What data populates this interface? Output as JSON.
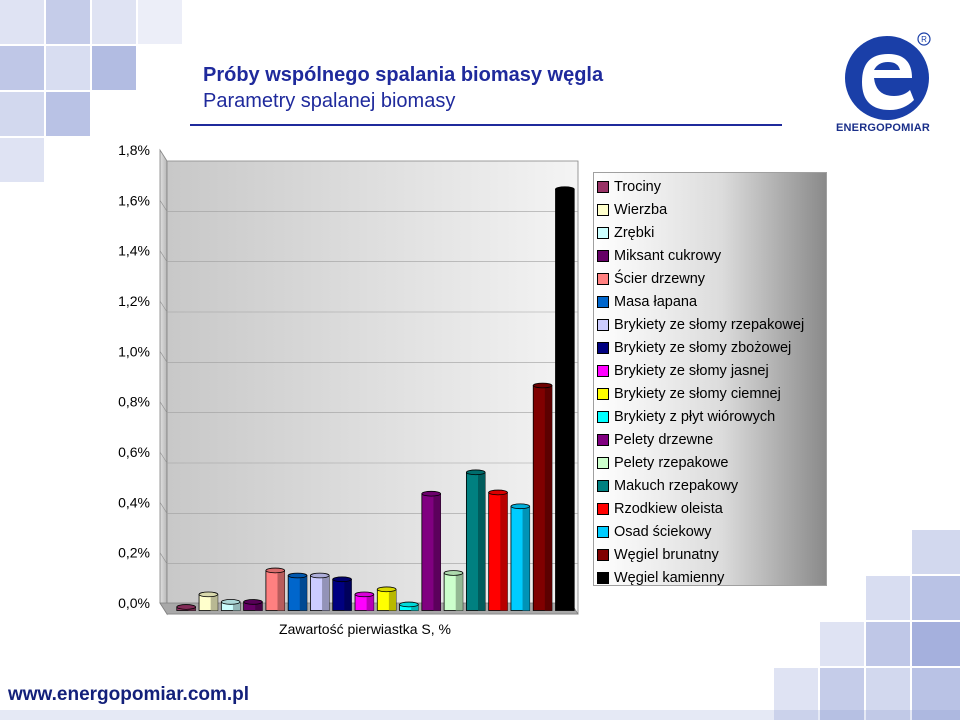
{
  "slide": {
    "title": "Próby wspólnego spalania biomasy węgla",
    "subtitle": "Parametry spalanej biomasy",
    "footer_url": "www.energopomiar.com.pl",
    "logo_text": "ENERGOPOMIAR",
    "logo_mark": "R",
    "colors": {
      "title": "#1f2a9c",
      "logo": "#1a3fa8",
      "deco": "#7f8fcf"
    }
  },
  "chart_data": {
    "type": "bar",
    "xlabel": "Zawartość pierwiastka S, %",
    "ylabel": "",
    "ylim": [
      0,
      1.8
    ],
    "yticks": [
      "0,0%",
      "0,2%",
      "0,4%",
      "0,6%",
      "0,8%",
      "1,0%",
      "1,2%",
      "1,4%",
      "1,6%",
      "1,8%"
    ],
    "grid": true,
    "legend_position": "right",
    "series": [
      {
        "name": "Trociny",
        "value": 0.02,
        "color": "#993366"
      },
      {
        "name": "Wierzba",
        "value": 0.07,
        "color": "#ffffcc"
      },
      {
        "name": "Zrębki",
        "value": 0.04,
        "color": "#ccffff"
      },
      {
        "name": "Miksant cukrowy",
        "value": 0.04,
        "color": "#660066"
      },
      {
        "name": "Ścier drzewny",
        "value": 0.165,
        "color": "#ff8080"
      },
      {
        "name": "Masa łapana",
        "value": 0.145,
        "color": "#0066cc"
      },
      {
        "name": "Brykiety ze słomy rzepakowej",
        "value": 0.145,
        "color": "#ccccff"
      },
      {
        "name": "Brykiety ze słomy zbożowej",
        "value": 0.13,
        "color": "#000080"
      },
      {
        "name": "Brykiety ze słomy jasnej",
        "value": 0.07,
        "color": "#ff00ff"
      },
      {
        "name": "Brykiety ze słomy ciemnej",
        "value": 0.09,
        "color": "#ffff00"
      },
      {
        "name": "Brykiety z płyt wiórowych",
        "value": 0.03,
        "color": "#00ffff"
      },
      {
        "name": "Pelety drzewne",
        "value": 0.47,
        "color": "#800080"
      },
      {
        "name": "Pelety rzepakowe",
        "value": 0.155,
        "color": "#ccffcc"
      },
      {
        "name": "Makuch rzepakowy",
        "value": 0.555,
        "color": "#008080"
      },
      {
        "name": "Rzodkiew oleista",
        "value": 0.475,
        "color": "#ff0000"
      },
      {
        "name": "Osad ściekowy",
        "value": 0.42,
        "color": "#00ccff"
      },
      {
        "name": "Węgiel brunatny",
        "value": 0.9,
        "color": "#800000"
      },
      {
        "name": "Węgiel kamienny",
        "value": 1.68,
        "color": "#000000"
      }
    ]
  }
}
